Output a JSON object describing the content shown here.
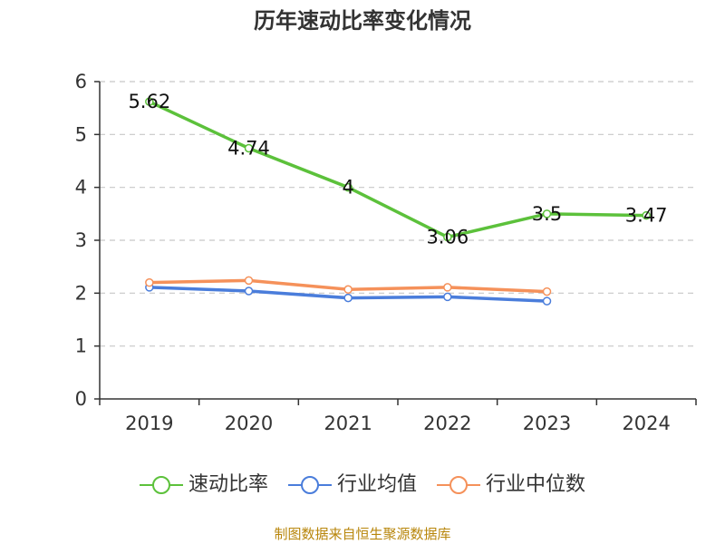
{
  "chart_data": {
    "type": "line",
    "title": "历年速动比率变化情况",
    "xlabel": "",
    "ylabel": "",
    "categories": [
      "2019",
      "2020",
      "2021",
      "2022",
      "2023",
      "2024"
    ],
    "ylim": [
      0,
      6
    ],
    "yticks": [
      0,
      1,
      2,
      3,
      4,
      5,
      6
    ],
    "grid": true,
    "legend_position": "bottom",
    "series": [
      {
        "name": "速动比率",
        "color": "#5cc13b",
        "values": [
          5.62,
          4.74,
          4,
          3.06,
          3.5,
          3.47
        ],
        "data_labels": [
          "5.62",
          "4.74",
          "4",
          "3.06",
          "3.5",
          "3.47"
        ]
      },
      {
        "name": "行业均值",
        "color": "#4a7ddb",
        "values": [
          2.11,
          2.04,
          1.91,
          1.93,
          1.85,
          null
        ]
      },
      {
        "name": "行业中位数",
        "color": "#f5915a",
        "values": [
          2.2,
          2.24,
          2.07,
          2.11,
          2.03,
          null
        ]
      }
    ]
  },
  "source_note": "制图数据来自恒生聚源数据库"
}
